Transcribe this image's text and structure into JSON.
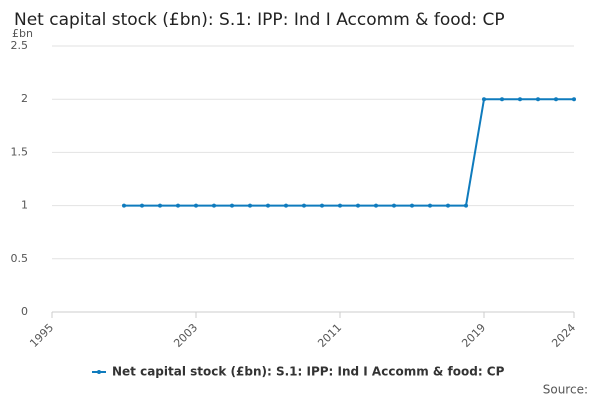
{
  "chart_data": {
    "type": "line",
    "title": "Net capital stock (£bn): S.1: IPP: Ind I Accomm & food: CP",
    "y_label": "£bn",
    "source": "Source:",
    "x": [
      1999,
      2000,
      2001,
      2002,
      2003,
      2004,
      2005,
      2006,
      2007,
      2008,
      2009,
      2010,
      2011,
      2012,
      2013,
      2014,
      2015,
      2016,
      2017,
      2018,
      2019,
      2020,
      2021,
      2022,
      2023,
      2024
    ],
    "series": [
      {
        "name": "Net capital stock (£bn): S.1: IPP: Ind I Accomm & food: CP",
        "color": "#0f7bbd",
        "values": [
          1,
          1,
          1,
          1,
          1,
          1,
          1,
          1,
          1,
          1,
          1,
          1,
          1,
          1,
          1,
          1,
          1,
          1,
          1,
          1,
          2,
          2,
          2,
          2,
          2,
          2
        ]
      }
    ],
    "xlim": [
      1995,
      2024
    ],
    "xticks": [
      1995,
      2003,
      2011,
      2019,
      2024
    ],
    "ylim": [
      0,
      2.5
    ],
    "yticks": [
      0,
      0.5,
      1,
      1.5,
      2,
      2.5
    ],
    "grid": true,
    "legend": "bottom"
  }
}
